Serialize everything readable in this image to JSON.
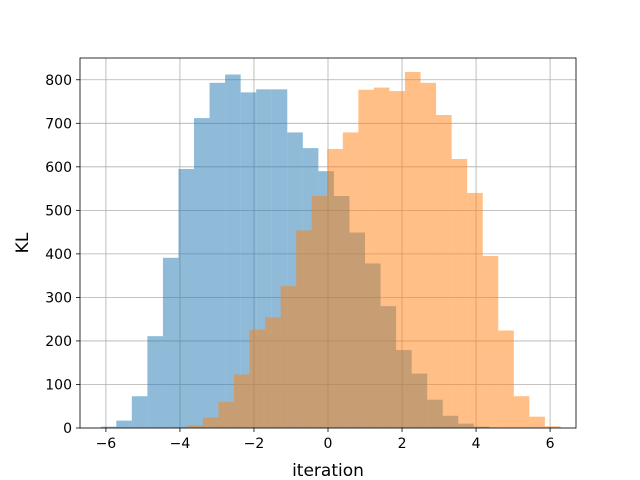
{
  "chart_data": {
    "type": "bar",
    "title": "",
    "xlabel": "iteration",
    "ylabel": "KL",
    "xlim": [
      -6.7,
      6.7
    ],
    "ylim": [
      0,
      850
    ],
    "grid": true,
    "legend": "none",
    "x_ticks": [
      -6,
      -4,
      -2,
      0,
      2,
      4,
      6
    ],
    "x_tick_labels": [
      "−6",
      "−4",
      "−2",
      "0",
      "2",
      "4",
      "6"
    ],
    "y_ticks": [
      0,
      100,
      200,
      300,
      400,
      500,
      600,
      700,
      800
    ],
    "y_tick_labels": [
      "0",
      "100",
      "200",
      "300",
      "400",
      "500",
      "600",
      "700",
      "800"
    ],
    "series": [
      {
        "color": "#1f77b4",
        "opacity": 0.5,
        "bin_edges": [
          -6.14,
          -5.72,
          -5.3,
          -4.88,
          -4.46,
          -4.04,
          -3.62,
          -3.2,
          -2.78,
          -2.36,
          -1.94,
          -1.52,
          -1.1,
          -0.68,
          -0.26,
          0.16,
          0.58,
          1.0,
          1.42,
          1.84,
          2.26,
          2.68,
          3.1,
          3.52,
          3.94,
          4.36
        ],
        "counts": [
          3,
          17,
          73,
          211,
          391,
          595,
          712,
          793,
          812,
          771,
          778,
          778,
          679,
          643,
          590,
          533,
          449,
          378,
          280,
          179,
          125,
          65,
          28,
          10,
          3
        ]
      },
      {
        "color": "#ff7f0e",
        "opacity": 0.5,
        "bin_edges": [
          -4.22,
          -3.8,
          -3.38,
          -2.96,
          -2.54,
          -2.12,
          -1.7,
          -1.28,
          -0.86,
          -0.44,
          -0.02,
          0.4,
          0.82,
          1.24,
          1.66,
          2.08,
          2.5,
          2.92,
          3.34,
          3.76,
          4.18,
          4.6,
          5.02,
          5.44,
          5.86,
          6.28
        ],
        "counts": [
          2,
          6,
          24,
          60,
          123,
          226,
          254,
          326,
          454,
          533,
          641,
          679,
          777,
          782,
          774,
          818,
          793,
          719,
          618,
          540,
          395,
          224,
          73,
          26,
          4
        ]
      }
    ]
  }
}
